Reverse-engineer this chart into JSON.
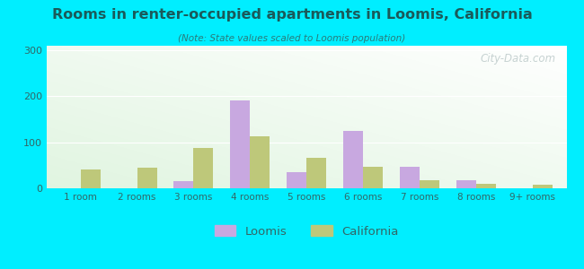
{
  "title": "Rooms in renter-occupied apartments in Loomis, California",
  "subtitle": "(Note: State values scaled to Loomis population)",
  "categories": [
    "1 room",
    "2 rooms",
    "3 rooms",
    "4 rooms",
    "5 rooms",
    "6 rooms",
    "7 rooms",
    "8 rooms",
    "9+ rooms"
  ],
  "loomis_values": [
    0,
    0,
    15,
    192,
    35,
    124,
    46,
    18,
    0
  ],
  "california_values": [
    40,
    45,
    87,
    113,
    67,
    46,
    18,
    10,
    8
  ],
  "loomis_color": "#c8a8e0",
  "california_color": "#bec87a",
  "background_color": "#00eeff",
  "ylim": [
    0,
    310
  ],
  "yticks": [
    0,
    100,
    200,
    300
  ],
  "bar_width": 0.35,
  "watermark": "City-Data.com",
  "legend_labels": [
    "Loomis",
    "California"
  ],
  "title_color": "#1a5a5a",
  "subtitle_color": "#2a7a7a",
  "tick_color": "#336666"
}
